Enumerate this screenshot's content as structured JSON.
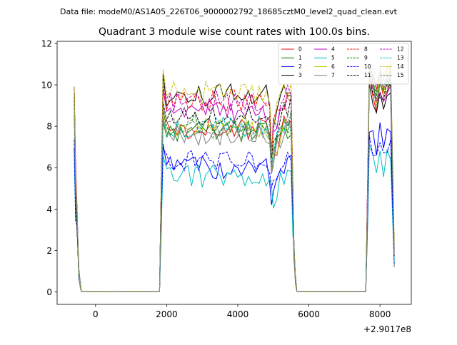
{
  "figure": {
    "suptitle": "Data file: modeM0/AS1A05_226T06_9000002792_18685cztM0_level2_quad_clean.evt",
    "offset_label": "+2.9017e8"
  },
  "chart_data": {
    "type": "line",
    "title": "Quadrant 3 module wise count rates with 100.0s bins.",
    "xlabel": "",
    "ylabel": "",
    "xlim": [
      -1080,
      8880
    ],
    "ylim": [
      -0.6,
      12.1
    ],
    "x_offset": 290170000,
    "x_ticks": [
      0,
      2000,
      4000,
      6000,
      8000
    ],
    "x_tick_labels": [
      "0",
      "2000",
      "4000",
      "6000",
      "8000"
    ],
    "y_ticks": [
      0,
      2,
      4,
      6,
      8,
      10,
      12
    ],
    "y_tick_labels": [
      "0",
      "2",
      "4",
      "6",
      "8",
      "10",
      "12"
    ],
    "legend": {
      "placement": "top-right",
      "columns": 4
    },
    "series": [
      {
        "name": "0",
        "color": "#ff0000",
        "dash": "solid",
        "level": 7.9,
        "peak2": 10.2,
        "low": 6.1
      },
      {
        "name": "1",
        "color": "#008000",
        "dash": "solid",
        "level": 7.8,
        "peak2": 10.6,
        "low": 5.8
      },
      {
        "name": "2",
        "color": "#0000ff",
        "dash": "solid",
        "level": 6.0,
        "peak2": 8.0,
        "low": 4.4
      },
      {
        "name": "3",
        "color": "#000000",
        "dash": "solid",
        "level": 9.5,
        "peak2": 10.0,
        "low": 6.6
      },
      {
        "name": "4",
        "color": "#bf00bf",
        "dash": "solid",
        "level": 8.8,
        "peak2": 10.5,
        "low": 6.2
      },
      {
        "name": "5",
        "color": "#00bfbf",
        "dash": "solid",
        "level": 5.6,
        "peak2": 7.0,
        "low": 5.2
      },
      {
        "name": "6",
        "color": "#bfbf00",
        "dash": "solid",
        "level": 8.0,
        "peak2": 10.9,
        "low": 5.6
      },
      {
        "name": "7",
        "color": "#808080",
        "dash": "solid",
        "level": 7.6,
        "peak2": 10.8,
        "low": 5.9
      },
      {
        "name": "8",
        "color": "#ff0000",
        "dash": "dashed",
        "level": 9.3,
        "peak2": 10.9,
        "low": 6.5
      },
      {
        "name": "9",
        "color": "#008000",
        "dash": "dashed",
        "level": 8.1,
        "peak2": 10.5,
        "low": 5.9
      },
      {
        "name": "10",
        "color": "#0000ff",
        "dash": "dashed",
        "level": 6.3,
        "peak2": 7.6,
        "low": 5.1
      },
      {
        "name": "11",
        "color": "#000000",
        "dash": "dashed",
        "level": 8.6,
        "peak2": 10.3,
        "low": 6.3
      },
      {
        "name": "12",
        "color": "#bf00bf",
        "dash": "dashed",
        "level": 9.2,
        "peak2": 10.9,
        "low": 6.7
      },
      {
        "name": "13",
        "color": "#00bfbf",
        "dash": "dashed",
        "level": 8.0,
        "peak2": 11.2,
        "low": 6.0
      },
      {
        "name": "14",
        "color": "#bfbf00",
        "dash": "dashed",
        "level": 9.6,
        "peak2": 10.8,
        "low": 6.4
      },
      {
        "name": "15",
        "color": "#808080",
        "dash": "dashed",
        "level": 7.9,
        "peak2": 10.6,
        "low": 5.8
      }
    ],
    "segments": [
      {
        "name": "first-orbit",
        "x": [
          -600,
          -550,
          -500,
          -450,
          -400
        ],
        "shape": "falling"
      },
      {
        "name": "zero-floor-1",
        "x": [
          -400,
          -300,
          -200,
          -100,
          0,
          100,
          200,
          300,
          400,
          500,
          600,
          700,
          800,
          900,
          1000,
          1100,
          1200,
          1300,
          1400,
          1500,
          1600,
          1700,
          1800
        ],
        "value": 0.03
      },
      {
        "name": "second-orbit",
        "x_start": 1850,
        "x_end": 5550,
        "step": 100,
        "dip_x": 4950
      },
      {
        "name": "zero-floor-2",
        "x": [
          5650,
          5700,
          5800,
          5900,
          6000,
          6100,
          6200,
          6300,
          6400,
          6500,
          6600,
          6700,
          6800,
          6900,
          7000,
          7100,
          7200,
          7300,
          7400,
          7500,
          7600
        ],
        "value": 0.03
      },
      {
        "name": "third-orbit",
        "x": [
          7650,
          7750,
          7850,
          7950,
          8050,
          8150,
          8250,
          8350,
          8400
        ],
        "shape": "rising-then-falling"
      }
    ]
  }
}
